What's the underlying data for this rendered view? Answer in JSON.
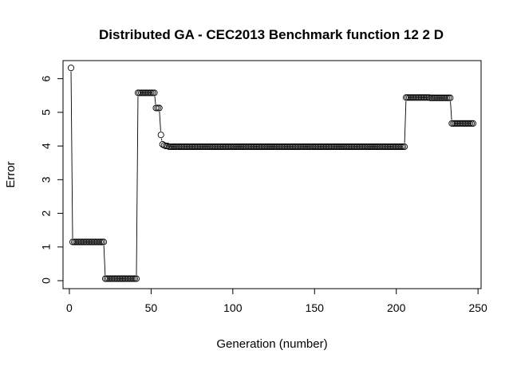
{
  "chart_data": {
    "type": "line",
    "title": "Distributed GA - CEC2013 Benchmark function  12 2 D",
    "xlabel": "Generation (number)",
    "ylabel": "Error",
    "xlim": [
      1,
      247
    ],
    "ylim": [
      0,
      6.3
    ],
    "xticks": [
      0,
      50,
      100,
      150,
      200,
      250
    ],
    "yticks": [
      0,
      1,
      2,
      3,
      4,
      5,
      6
    ],
    "grid": false,
    "legend": "none",
    "marker": "open-circle",
    "line_type": "b",
    "series": [
      {
        "segments": [
          {
            "from": 1,
            "to": 1,
            "value": 6.32
          },
          {
            "from": 2,
            "to": 21,
            "value": 1.15
          },
          {
            "from": 22,
            "to": 41,
            "value": 0.06
          },
          {
            "from": 42,
            "to": 52,
            "value": 5.58
          },
          {
            "from": 53,
            "to": 55,
            "value": 5.13
          },
          {
            "from": 56,
            "to": 56,
            "value": 4.33
          },
          {
            "from": 57,
            "to": 57,
            "value": 4.05
          },
          {
            "from": 58,
            "to": 58,
            "value": 4.02
          },
          {
            "from": 59,
            "to": 60,
            "value": 4.0
          },
          {
            "from": 61,
            "to": 205,
            "value": 3.98
          },
          {
            "from": 206,
            "to": 220,
            "value": 5.44
          },
          {
            "from": 221,
            "to": 233,
            "value": 5.43
          },
          {
            "from": 234,
            "to": 247,
            "value": 4.67
          }
        ]
      }
    ]
  }
}
